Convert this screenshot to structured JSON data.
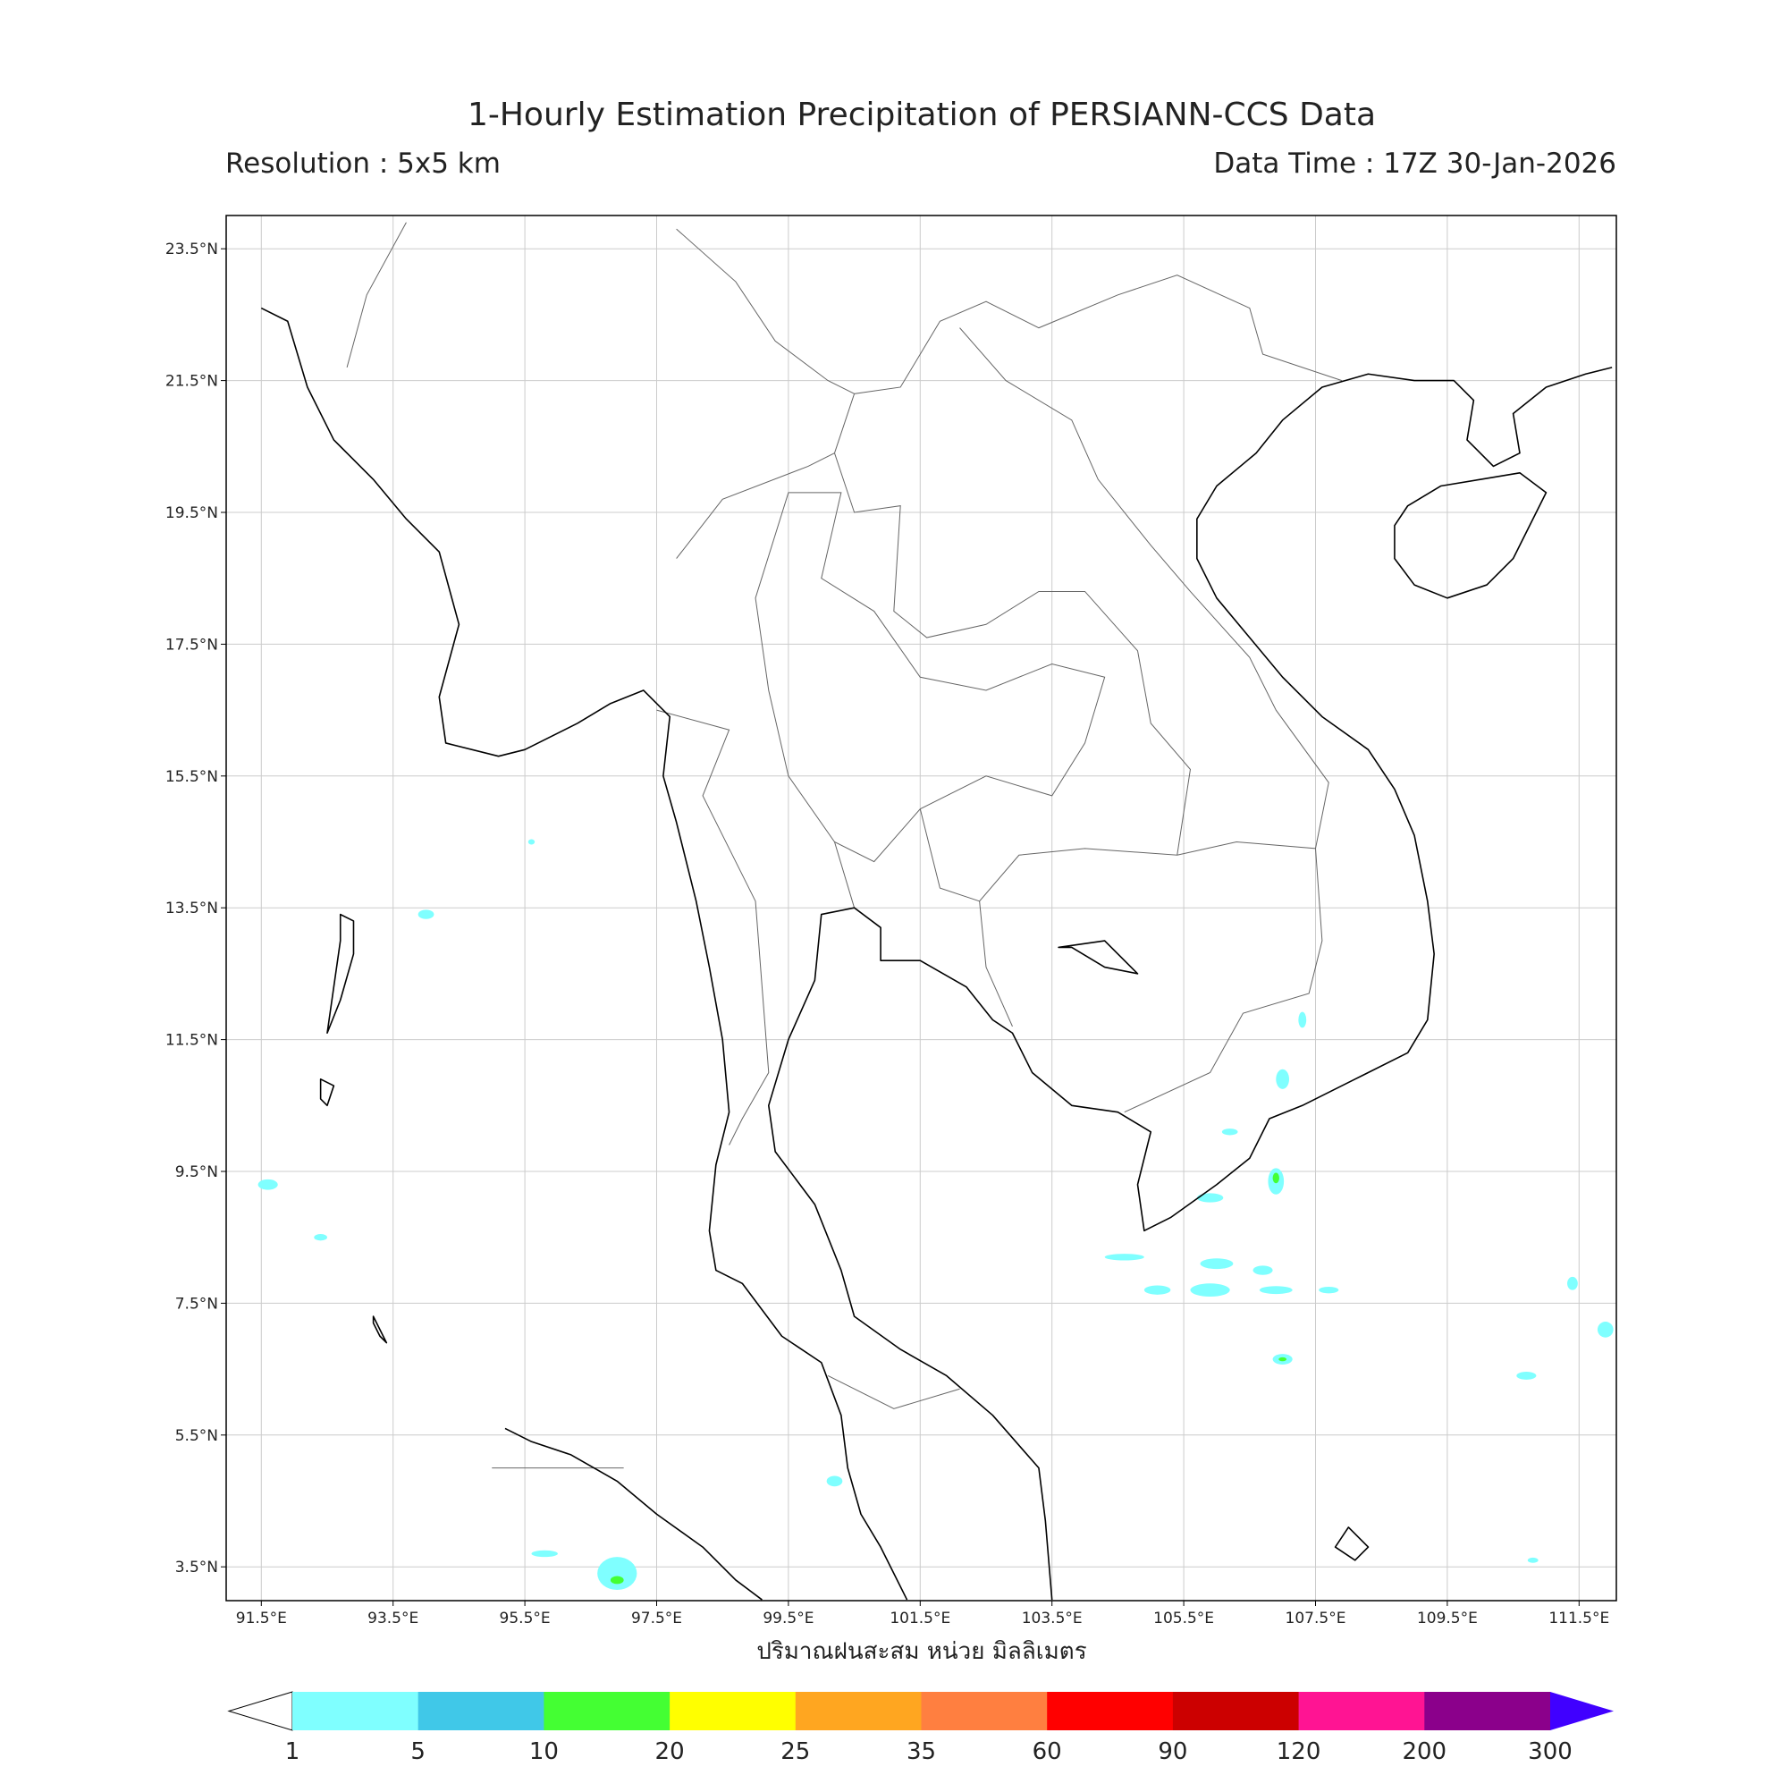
{
  "header": {
    "title": "1-Hourly Estimation Precipitation of PERSIANN-CCS Data",
    "resolution": "Resolution : 5x5 km",
    "data_time": "Data Time : 17Z 30-Jan-2026"
  },
  "map": {
    "lat_labels": [
      "23.5°N",
      "21.5°N",
      "19.5°N",
      "17.5°N",
      "15.5°N",
      "13.5°N",
      "11.5°N",
      "9.5°N",
      "7.5°N",
      "5.5°N",
      "3.5°N"
    ],
    "lon_labels": [
      "91.5°E",
      "93.5°E",
      "95.5°E",
      "97.5°E",
      "99.5°E",
      "101.5°E",
      "103.5°E",
      "105.5°E",
      "107.5°E",
      "109.5°E",
      "111.5°E"
    ],
    "xlabel": "ปริมาณฝนสะสม หน่วย มิลลิเมตร"
  },
  "colorbar": {
    "levels": [
      1,
      5,
      10,
      20,
      25,
      35,
      60,
      90,
      120,
      200,
      300
    ],
    "colors": [
      "#7fffff",
      "#40c8e8",
      "#44ff33",
      "#ffff00",
      "#ffa620",
      "#ff7f40",
      "#ff0000",
      "#cc0000",
      "#ff1493",
      "#8b008b"
    ],
    "over_color": "#4000ff",
    "under_color": "#ffffff"
  }
}
